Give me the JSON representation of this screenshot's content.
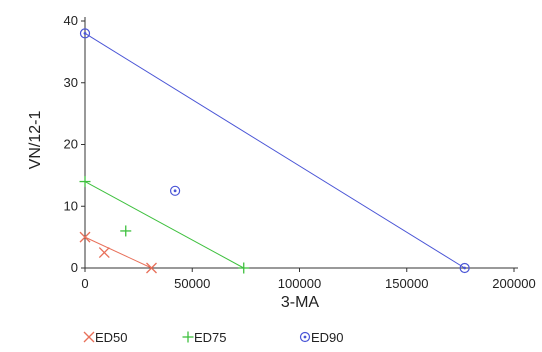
{
  "chart_data": {
    "type": "scatter",
    "title": "",
    "xlabel": "3-MA",
    "ylabel": "VN/12-1",
    "xlim": [
      0,
      200000
    ],
    "ylim": [
      0,
      40
    ],
    "x_ticks": [
      {
        "value": 0,
        "label": "0"
      },
      {
        "value": 50000,
        "label": "50000"
      },
      {
        "value": 100000,
        "label": "100000"
      },
      {
        "value": 150000,
        "label": "150000"
      },
      {
        "value": 200000,
        "label": "200000"
      }
    ],
    "y_ticks": [
      {
        "value": 0,
        "label": "0"
      },
      {
        "value": 10,
        "label": "10"
      },
      {
        "value": 20,
        "label": "20"
      },
      {
        "value": 30,
        "label": "30"
      },
      {
        "value": 40,
        "label": "40"
      }
    ],
    "grid": false,
    "legend_position": "bottom",
    "series": [
      {
        "name": "ED50",
        "marker": "x",
        "color": "#e8705a",
        "points": [
          [
            0,
            5
          ],
          [
            9000,
            2.5
          ],
          [
            31000,
            0
          ]
        ],
        "line": [
          [
            0,
            5
          ],
          [
            31000,
            0
          ]
        ]
      },
      {
        "name": "ED75",
        "marker": "plus",
        "color": "#3ec03e",
        "points": [
          [
            0,
            14
          ],
          [
            19000,
            6
          ],
          [
            74000,
            0
          ]
        ],
        "line": [
          [
            0,
            14
          ],
          [
            74000,
            0
          ]
        ]
      },
      {
        "name": "ED90",
        "marker": "circle-dot",
        "color": "#4a55d6",
        "points": [
          [
            0,
            38
          ],
          [
            42000,
            12.5
          ],
          [
            177000,
            0
          ]
        ],
        "line": [
          [
            0,
            38
          ],
          [
            177000,
            0
          ]
        ]
      }
    ]
  }
}
